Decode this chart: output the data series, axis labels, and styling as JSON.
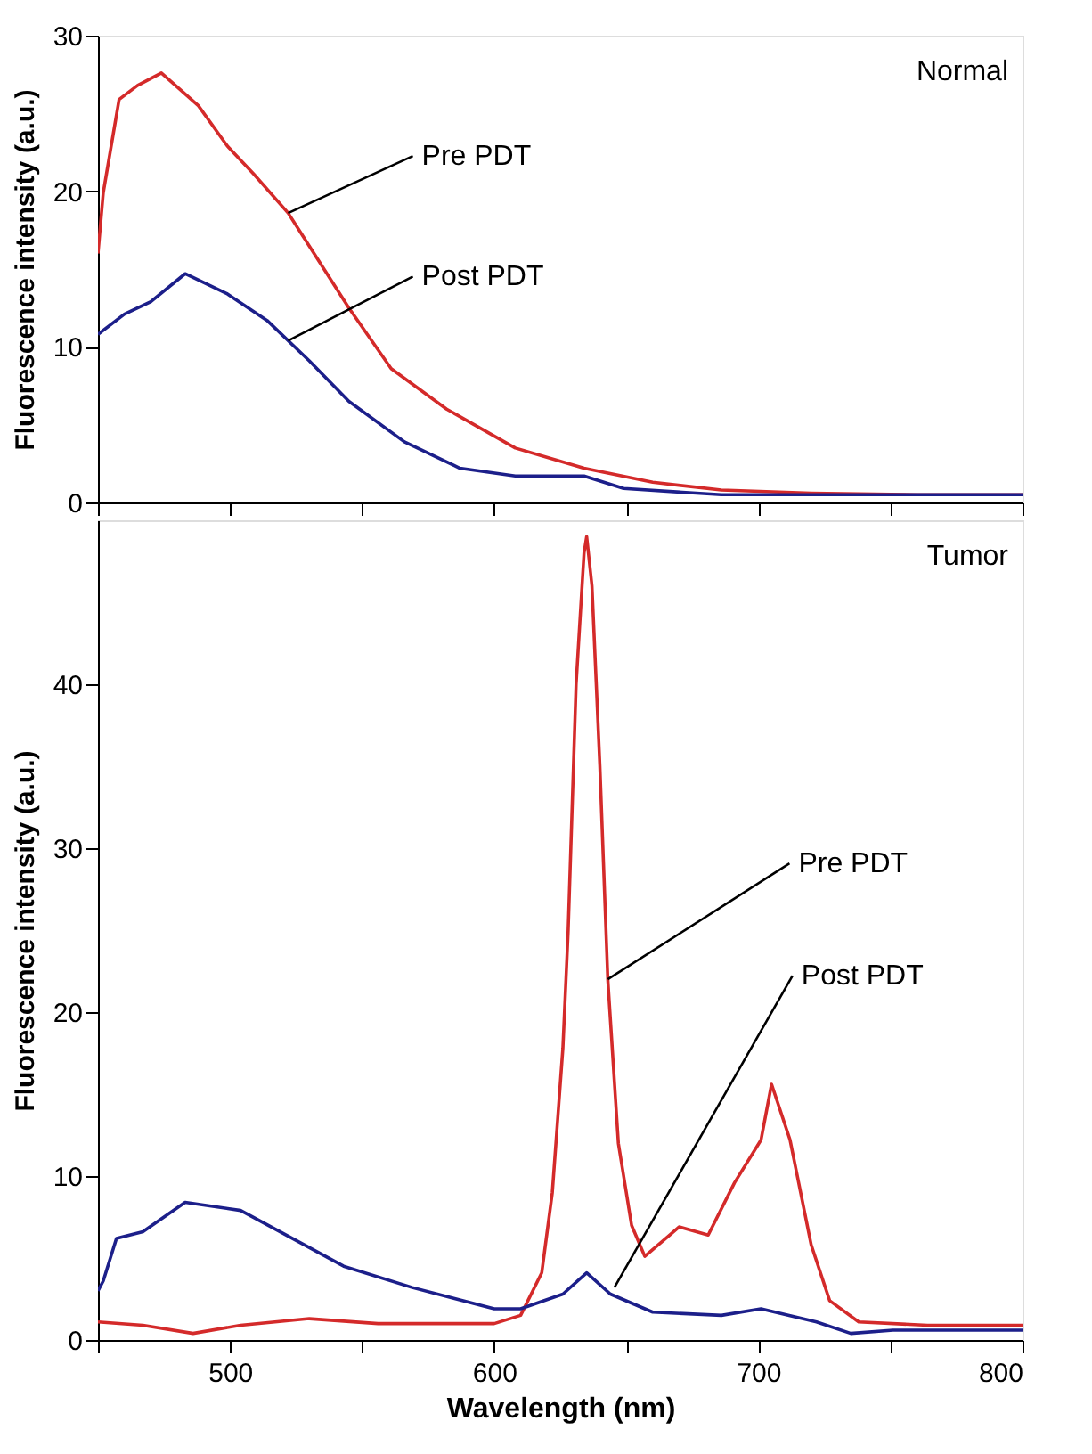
{
  "chart_data": [
    {
      "type": "line",
      "ylabel": "Fluorescence intensity (a.u.)",
      "xlim": [
        450,
        800
      ],
      "xticks": [
        {
          "value": 450,
          "label": null
        },
        {
          "value": 500,
          "label": null
        },
        {
          "value": 550,
          "label": null
        },
        {
          "value": 600,
          "label": null
        },
        {
          "value": 650,
          "label": null
        },
        {
          "value": 700,
          "label": null
        },
        {
          "value": 750,
          "label": null
        },
        {
          "value": 800,
          "label": null
        }
      ],
      "ylim": [
        0,
        30
      ],
      "yticks": [
        0,
        10,
        20,
        30
      ],
      "tick_labels": "y",
      "line_style": "solid",
      "marker": "none",
      "annotations": [
        "Normal",
        {
          "text": "Pre PDT",
          "x": 522,
          "y": 18.6
        },
        {
          "text": "Post PDT",
          "x": 522,
          "y": 10.4
        }
      ],
      "series": [
        {
          "color": "#d42a2a",
          "x": [
            450,
            452,
            458,
            465,
            474,
            488,
            499,
            509,
            522,
            545,
            561,
            582,
            608,
            634,
            660,
            686,
            720,
            760,
            800
          ],
          "values": [
            16,
            19.9,
            25.9,
            26.8,
            27.6,
            25.5,
            22.9,
            21.1,
            18.6,
            12.5,
            8.6,
            6.0,
            3.5,
            2.2,
            1.3,
            0.8,
            0.6,
            0.5,
            0.5
          ]
        },
        {
          "color": "#1c1f8a",
          "x": [
            450,
            460,
            470,
            483,
            499,
            514,
            530,
            545,
            566,
            587,
            608,
            634,
            649,
            686,
            720,
            760,
            800
          ],
          "values": [
            10.8,
            12.1,
            12.9,
            14.7,
            13.4,
            11.7,
            9.1,
            6.5,
            3.9,
            2.2,
            1.7,
            1.7,
            0.9,
            0.5,
            0.5,
            0.5,
            0.5
          ]
        }
      ]
    },
    {
      "type": "line",
      "xlabel": "Wavelength (nm)",
      "ylabel": "Fluorescence intensity (a.u.)",
      "xlim": [
        450,
        800
      ],
      "xticks": [
        {
          "value": 450,
          "label": null
        },
        500,
        {
          "value": 550,
          "label": null
        },
        600,
        {
          "value": 650,
          "label": null
        },
        700,
        {
          "value": 750,
          "label": null
        },
        800
      ],
      "ylim": [
        0,
        50
      ],
      "yticks": [
        0,
        10,
        20,
        30,
        40
      ],
      "line_style": "solid",
      "marker": "none",
      "annotations": [
        "Tumor",
        {
          "text": "Pre PDT",
          "x": 643,
          "y": 22
        },
        {
          "text": "Post PDT",
          "x": 645.5,
          "y": 3.2
        }
      ],
      "series": [
        {
          "color": "#d42a2a",
          "x": [
            450,
            467,
            486,
            504,
            530,
            556,
            600,
            610,
            618,
            622,
            626,
            628,
            631,
            634,
            635,
            637,
            640,
            643,
            647,
            652,
            657,
            665,
            670,
            681,
            691,
            701,
            705,
            712,
            720,
            727,
            738,
            764,
            800
          ],
          "values": [
            1.1,
            0.9,
            0.4,
            0.9,
            1.3,
            1.0,
            1.0,
            1.5,
            4.1,
            9,
            17.8,
            25,
            40,
            48,
            49,
            46,
            35,
            22,
            12,
            7,
            5.1,
            6.2,
            6.9,
            6.4,
            9.6,
            12.2,
            15.6,
            12.2,
            5.8,
            2.4,
            1.1,
            0.9,
            0.9
          ]
        },
        {
          "color": "#1c1f8a",
          "x": [
            450,
            452,
            457,
            467,
            483,
            504,
            519,
            543,
            569,
            600,
            610,
            626,
            635,
            644,
            660,
            686,
            701,
            722,
            735,
            751,
            800
          ],
          "values": [
            3.0,
            3.6,
            6.2,
            6.6,
            8.4,
            7.9,
            6.6,
            4.5,
            3.2,
            1.9,
            1.9,
            2.8,
            4.1,
            2.8,
            1.7,
            1.5,
            1.9,
            1.1,
            0.4,
            0.6,
            0.6
          ]
        }
      ]
    }
  ]
}
